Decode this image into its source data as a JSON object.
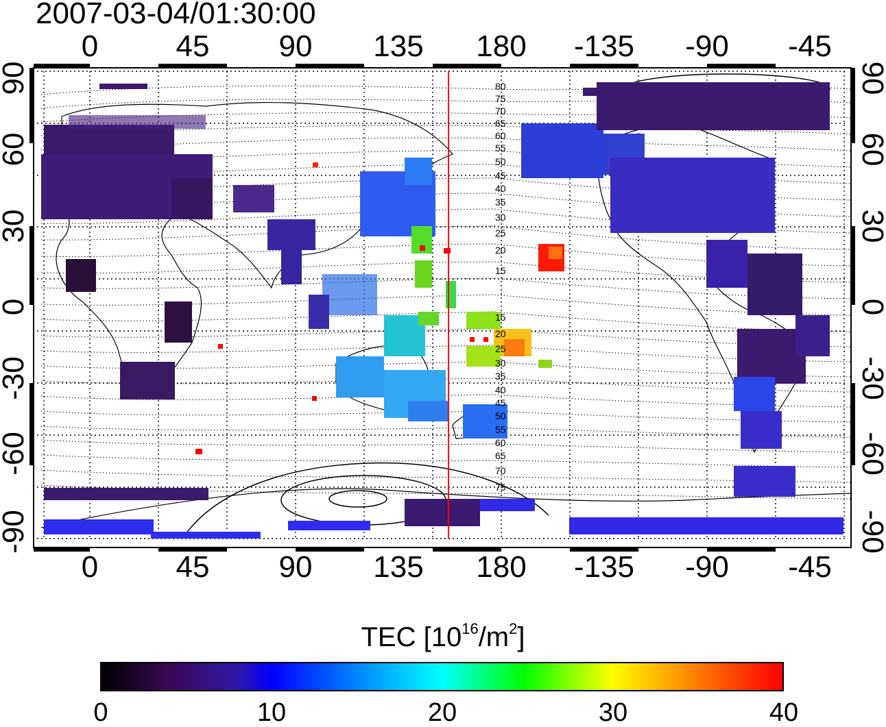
{
  "timestamp": "2007-03-04/01:30:00",
  "longitude_ticks": [
    "0",
    "45",
    "90",
    "135",
    "180",
    "-135",
    "-90",
    "-45"
  ],
  "latitude_ticks": [
    "90",
    "60",
    "30",
    "0",
    "-30",
    "-60",
    "-90"
  ],
  "contour_labels": [
    "80",
    "75",
    "70",
    "65",
    "60",
    "55",
    "50",
    "45",
    "40",
    "35",
    "30",
    "25",
    "20",
    "15",
    "15",
    "20",
    "25",
    "30",
    "35",
    "40",
    "45",
    "50",
    "55",
    "60",
    "65",
    "70",
    "75"
  ],
  "colorbar": {
    "title_prefix": "TEC  [10",
    "title_exp1": "16",
    "title_mid": "/m",
    "title_exp2": "2",
    "title_suffix": "]",
    "ticks": [
      "0",
      "10",
      "20",
      "30",
      "40"
    ],
    "min": 0,
    "max": 40,
    "colors": [
      "#000000",
      "#3a0a55",
      "#3018a8",
      "#0000ff",
      "#0080ff",
      "#00ffff",
      "#00ff00",
      "#ffff00",
      "#ff8000",
      "#ff0000"
    ]
  },
  "map": {
    "lon_range": [
      -20,
      340
    ],
    "lat_range": [
      -90,
      90
    ],
    "meridian_marker_lon": 158,
    "marker_color": "#ff0000"
  }
}
